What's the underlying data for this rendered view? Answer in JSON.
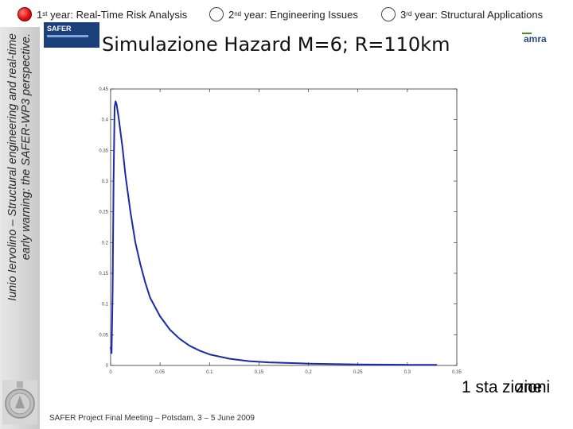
{
  "topbar": {
    "items": [
      {
        "ordinal": "1",
        "suffix": "st",
        "label": "year: Real-Time Risk Analysis",
        "state": "filled"
      },
      {
        "ordinal": "2",
        "suffix": "nd",
        "label": "year: Engineering Issues",
        "state": "outline"
      },
      {
        "ordinal": "3",
        "suffix": "rd",
        "label": "year: Structural Applications",
        "state": "outline"
      }
    ]
  },
  "sidebar": {
    "line1": "Iunio Iervolino – Structural engineering and real-time",
    "line2": "early warning: the SAFER-WP3 perspective."
  },
  "logos": {
    "safer": "SAFER",
    "amra": "amra"
  },
  "slide": {
    "title": "Simulazione Hazard M=6; R=110km"
  },
  "footer": {
    "text": "SAFER Project Final Meeting – Potsdam, 3 – 5 June 2009"
  },
  "overlap_text": {
    "prefix": "1 sta",
    "variant_a": "zione",
    "variant_b": "zioni"
  },
  "colors": {
    "curve": "#1a2aa8",
    "active_dot": "#e01010"
  },
  "chart_data": {
    "type": "line",
    "title": "",
    "xlabel": "",
    "ylabel": "",
    "xlim": [
      0,
      0.35
    ],
    "ylim": [
      0,
      0.45
    ],
    "x_ticks": [
      "0",
      "0.05",
      "0.1",
      "0.15",
      "0.2",
      "0.25",
      "0.3",
      "0.35"
    ],
    "y_ticks": [
      "0",
      "0.05",
      "0.1",
      "0.15",
      "0.2",
      "0.25",
      "0.3",
      "0.35",
      "0.4",
      "0.45"
    ],
    "grid": false,
    "series": [
      {
        "x": [
          0,
          0.001,
          0.002,
          0.003,
          0.004,
          0.005,
          0.006,
          0.008,
          0.01,
          0.012,
          0.015,
          0.02,
          0.025,
          0.03,
          0.035,
          0.04,
          0.05,
          0.06,
          0.07,
          0.08,
          0.09,
          0.1,
          0.12,
          0.14,
          0.16,
          0.18,
          0.2,
          0.25,
          0.3,
          0.33
        ],
        "y": [
          0.03,
          0.02,
          0.12,
          0.3,
          0.42,
          0.43,
          0.425,
          0.405,
          0.38,
          0.355,
          0.31,
          0.25,
          0.2,
          0.165,
          0.135,
          0.11,
          0.08,
          0.058,
          0.043,
          0.032,
          0.024,
          0.018,
          0.011,
          0.007,
          0.005,
          0.004,
          0.003,
          0.0015,
          0.001,
          0.001
        ]
      }
    ]
  }
}
